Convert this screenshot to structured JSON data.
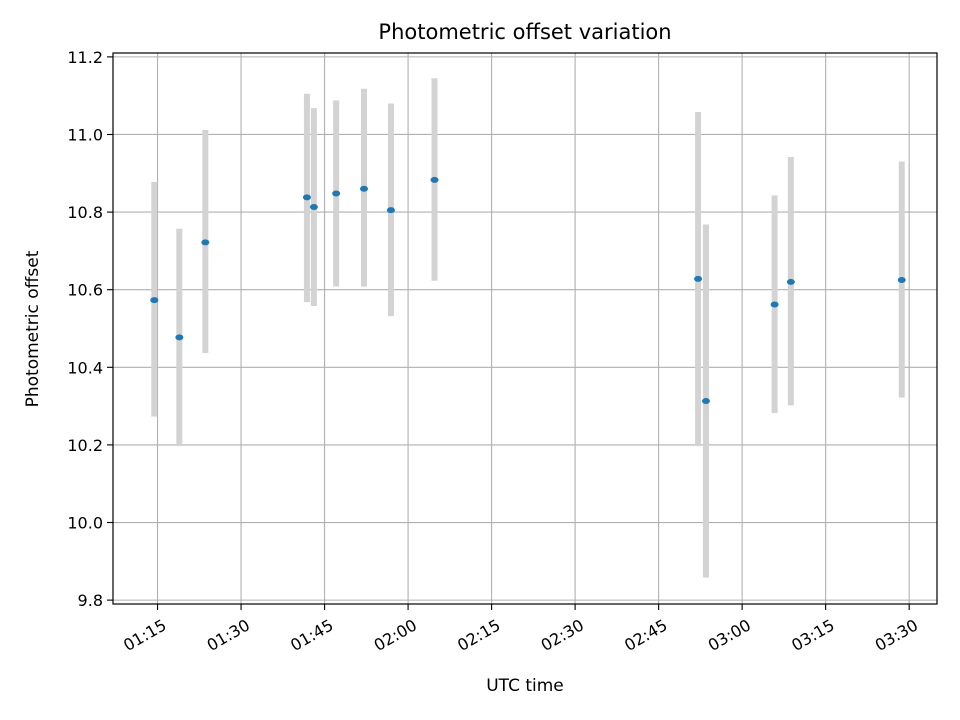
{
  "chart_data": {
    "type": "scatter",
    "title": "Photometric offset variation",
    "xlabel": "UTC time",
    "ylabel": "Photometric offset",
    "xlim": [
      "01:07",
      "03:35"
    ],
    "ylim": [
      9.79,
      11.21
    ],
    "grid": true,
    "x_ticks": [
      "01:15",
      "01:30",
      "01:45",
      "02:00",
      "02:15",
      "02:30",
      "02:45",
      "03:00",
      "03:15",
      "03:30"
    ],
    "y_ticks": [
      "9.8",
      "10.0",
      "10.2",
      "10.4",
      "10.6",
      "10.8",
      "11.0",
      "11.2"
    ],
    "point_color": "#1f77b4",
    "errorbar_color": "#d3d3d3",
    "points": [
      {
        "x": "01:14:25",
        "y": 10.573,
        "ylow": 10.273,
        "yhigh": 10.878
      },
      {
        "x": "01:18:55",
        "y": 10.477,
        "ylow": 10.197,
        "yhigh": 10.757
      },
      {
        "x": "01:23:35",
        "y": 10.722,
        "ylow": 10.437,
        "yhigh": 11.012
      },
      {
        "x": "01:41:50",
        "y": 10.838,
        "ylow": 10.568,
        "yhigh": 11.105
      },
      {
        "x": "01:43:05",
        "y": 10.813,
        "ylow": 10.558,
        "yhigh": 11.068
      },
      {
        "x": "01:47:05",
        "y": 10.848,
        "ylow": 10.608,
        "yhigh": 11.088
      },
      {
        "x": "01:52:05",
        "y": 10.86,
        "ylow": 10.608,
        "yhigh": 11.118
      },
      {
        "x": "01:56:55",
        "y": 10.805,
        "ylow": 10.532,
        "yhigh": 11.08
      },
      {
        "x": "02:04:45",
        "y": 10.883,
        "ylow": 10.623,
        "yhigh": 11.145
      },
      {
        "x": "02:52:05",
        "y": 10.628,
        "ylow": 10.197,
        "yhigh": 11.058
      },
      {
        "x": "02:53:30",
        "y": 10.313,
        "ylow": 9.858,
        "yhigh": 10.768
      },
      {
        "x": "03:05:50",
        "y": 10.562,
        "ylow": 10.282,
        "yhigh": 10.843
      },
      {
        "x": "03:08:45",
        "y": 10.62,
        "ylow": 10.302,
        "yhigh": 10.942
      },
      {
        "x": "03:28:40",
        "y": 10.625,
        "ylow": 10.322,
        "yhigh": 10.93
      }
    ]
  }
}
